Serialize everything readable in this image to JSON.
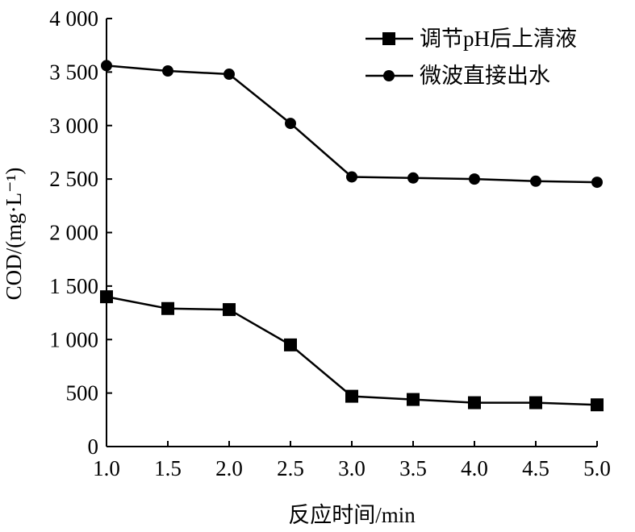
{
  "chart_data": {
    "type": "line",
    "xlabel": "反应时间/min",
    "ylabel": "COD/(mg·L⁻¹)",
    "x": [
      1.0,
      1.5,
      2.0,
      2.5,
      3.0,
      3.5,
      4.0,
      4.5,
      5.0
    ],
    "x_tick_labels": [
      "1.0",
      "1.5",
      "2.0",
      "2.5",
      "3.0",
      "3.5",
      "4.0",
      "4.5",
      "5.0"
    ],
    "xlim": [
      1.0,
      5.0
    ],
    "ylim": [
      0,
      4000
    ],
    "y_ticks": [
      0,
      500,
      1000,
      1500,
      2000,
      2500,
      3000,
      3500,
      4000
    ],
    "y_tick_labels": [
      "0",
      "500",
      "1 000",
      "1 500",
      "2 000",
      "2 500",
      "3 000",
      "3 500",
      "4 000"
    ],
    "grid": false,
    "legend_position": "top-right",
    "series": [
      {
        "name": "调节pH后上清液",
        "marker": "square",
        "color": "#000000",
        "values": [
          1400,
          1290,
          1280,
          950,
          470,
          440,
          410,
          410,
          390
        ]
      },
      {
        "name": "微波直接出水",
        "marker": "circle",
        "color": "#000000",
        "values": [
          3560,
          3510,
          3480,
          3020,
          2520,
          2510,
          2500,
          2480,
          2470
        ]
      }
    ]
  }
}
